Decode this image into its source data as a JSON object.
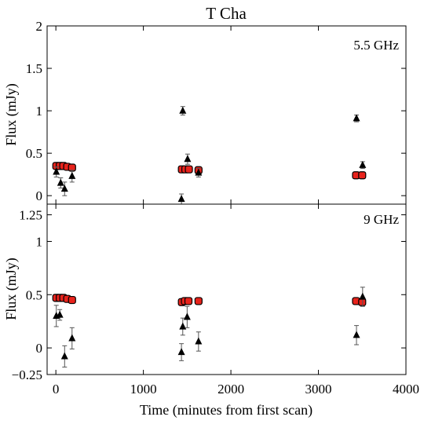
{
  "chart_data": {
    "type": "scatter",
    "title": "T Cha",
    "xlabel": "Time (minutes from first scan)",
    "xlim": [
      -100,
      4000
    ],
    "xticks": [
      0,
      1000,
      2000,
      3000,
      4000
    ],
    "colors": {
      "series_a": "#e8231c",
      "series_b": "#000000"
    },
    "panels": [
      {
        "annotation": "5.5 GHz",
        "ylabel": "Flux (mJy)",
        "ylim": [
          -0.1,
          2.0
        ],
        "yticks": [
          0,
          0.5,
          1,
          1.5,
          2
        ],
        "ytick_labels": [
          "0",
          "0.5",
          "1",
          "1.5",
          "2"
        ],
        "series": [
          {
            "marker": "square",
            "color": "#e8231c",
            "points": [
              {
                "x": 5,
                "y": 0.35,
                "err": 0.02
              },
              {
                "x": 45,
                "y": 0.35,
                "err": 0.02
              },
              {
                "x": 85,
                "y": 0.35,
                "err": 0.02
              },
              {
                "x": 130,
                "y": 0.34,
                "err": 0.02
              },
              {
                "x": 185,
                "y": 0.33,
                "err": 0.02
              },
              {
                "x": 1440,
                "y": 0.31,
                "err": 0.02
              },
              {
                "x": 1480,
                "y": 0.31,
                "err": 0.02
              },
              {
                "x": 1520,
                "y": 0.31,
                "err": 0.02
              },
              {
                "x": 1630,
                "y": 0.3,
                "err": 0.02
              },
              {
                "x": 3430,
                "y": 0.24,
                "err": 0.02
              },
              {
                "x": 3500,
                "y": 0.24,
                "err": 0.02
              }
            ]
          },
          {
            "marker": "triangle",
            "color": "#000000",
            "points": [
              {
                "x": 5,
                "y": 0.28,
                "err": 0.06
              },
              {
                "x": 55,
                "y": 0.15,
                "err": 0.06
              },
              {
                "x": 100,
                "y": 0.08,
                "err": 0.08
              },
              {
                "x": 185,
                "y": 0.23,
                "err": 0.07
              },
              {
                "x": 1435,
                "y": -0.04,
                "err": 0.06
              },
              {
                "x": 1450,
                "y": 1.0,
                "err": 0.05
              },
              {
                "x": 1505,
                "y": 0.43,
                "err": 0.06
              },
              {
                "x": 1630,
                "y": 0.27,
                "err": 0.05
              },
              {
                "x": 3435,
                "y": 0.91,
                "err": 0.04
              },
              {
                "x": 3505,
                "y": 0.36,
                "err": 0.04
              }
            ]
          }
        ]
      },
      {
        "annotation": "9 GHz",
        "ylabel": "Flux (mJy)",
        "ylim": [
          -0.25,
          1.35
        ],
        "yticks": [
          -0.25,
          0,
          0.5,
          1,
          1.25
        ],
        "ytick_labels": [
          "−0.25",
          "0",
          "0.5",
          "1",
          "1.25"
        ],
        "series": [
          {
            "marker": "square",
            "color": "#e8231c",
            "points": [
              {
                "x": 5,
                "y": 0.47,
                "err": 0.015
              },
              {
                "x": 45,
                "y": 0.47,
                "err": 0.015
              },
              {
                "x": 85,
                "y": 0.47,
                "err": 0.015
              },
              {
                "x": 130,
                "y": 0.46,
                "err": 0.015
              },
              {
                "x": 185,
                "y": 0.45,
                "err": 0.015
              },
              {
                "x": 1440,
                "y": 0.43,
                "err": 0.015
              },
              {
                "x": 1475,
                "y": 0.44,
                "err": 0.015
              },
              {
                "x": 1515,
                "y": 0.44,
                "err": 0.015
              },
              {
                "x": 1630,
                "y": 0.44,
                "err": 0.015
              },
              {
                "x": 3430,
                "y": 0.44,
                "err": 0.015
              },
              {
                "x": 3500,
                "y": 0.43,
                "err": 0.015
              }
            ]
          },
          {
            "marker": "triangle",
            "color": "#000000",
            "points": [
              {
                "x": 5,
                "y": 0.3,
                "err": 0.1
              },
              {
                "x": 45,
                "y": 0.31,
                "err": 0.05
              },
              {
                "x": 100,
                "y": -0.08,
                "err": 0.1
              },
              {
                "x": 185,
                "y": 0.09,
                "err": 0.1
              },
              {
                "x": 1435,
                "y": -0.04,
                "err": 0.08
              },
              {
                "x": 1450,
                "y": 0.2,
                "err": 0.08
              },
              {
                "x": 1500,
                "y": 0.29,
                "err": 0.1
              },
              {
                "x": 1630,
                "y": 0.06,
                "err": 0.09
              },
              {
                "x": 3435,
                "y": 0.12,
                "err": 0.09
              },
              {
                "x": 3505,
                "y": 0.48,
                "err": 0.09
              }
            ]
          }
        ]
      }
    ]
  }
}
